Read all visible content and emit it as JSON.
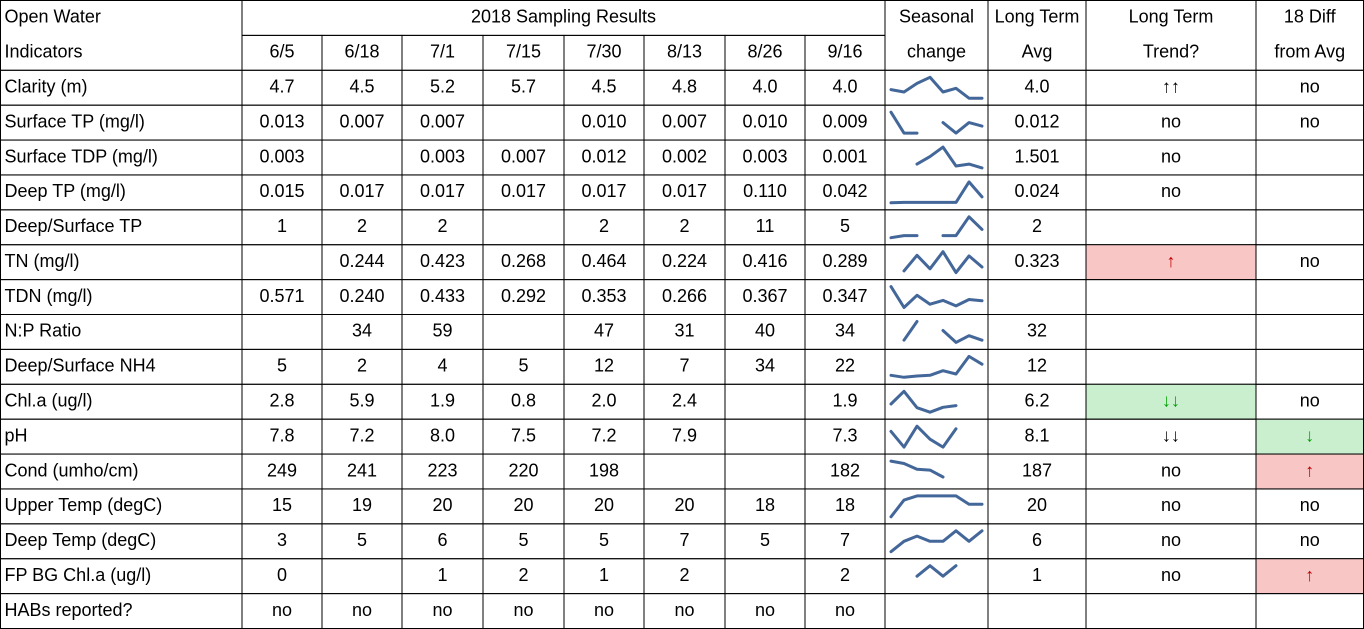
{
  "header": {
    "corner": [
      "Open Water",
      "Indicators"
    ],
    "group": "2018 Sampling Results",
    "dates": [
      "6/5",
      "6/18",
      "7/1",
      "7/15",
      "7/30",
      "8/13",
      "8/26",
      "9/16"
    ],
    "seasonal": [
      "Seasonal",
      "change"
    ],
    "avg": [
      "Long Term",
      "Avg"
    ],
    "trend": [
      "Long Term",
      "Trend?"
    ],
    "diff": [
      "18 Diff",
      "from Avg"
    ]
  },
  "rows": [
    {
      "label": "Clarity (m)",
      "values": [
        "4.7",
        "4.5",
        "5.2",
        "5.7",
        "4.5",
        "4.8",
        "4.0",
        "4.0"
      ],
      "avg": "4.0",
      "trend": "↑↑",
      "diff": "no"
    },
    {
      "label": "Surface TP (mg/l)",
      "values": [
        "0.013",
        "0.007",
        "0.007",
        null,
        "0.010",
        "0.007",
        "0.010",
        "0.009"
      ],
      "avg": "0.012",
      "trend": "no",
      "diff": "no"
    },
    {
      "label": "Surface TDP (mg/l)",
      "values": [
        "0.003",
        null,
        "0.003",
        "0.007",
        "0.012",
        "0.002",
        "0.003",
        "0.001"
      ],
      "avg": "1.501",
      "trend": "no",
      "diff": null
    },
    {
      "label": "Deep TP (mg/l)",
      "values": [
        "0.015",
        "0.017",
        "0.017",
        "0.017",
        "0.017",
        "0.017",
        "0.110",
        "0.042"
      ],
      "avg": "0.024",
      "trend": "no",
      "diff": null
    },
    {
      "label": "Deep/Surface TP",
      "values": [
        "1",
        "2",
        "2",
        null,
        "2",
        "2",
        "11",
        "5"
      ],
      "avg": "2",
      "trend": null,
      "diff": null
    },
    {
      "label": "TN (mg/l)",
      "values": [
        null,
        "0.244",
        "0.423",
        "0.268",
        "0.464",
        "0.224",
        "0.416",
        "0.289"
      ],
      "avg": "0.323",
      "trend": "↑",
      "diff": "no"
    },
    {
      "label": "TDN (mg/l)",
      "values": [
        "0.571",
        "0.240",
        "0.433",
        "0.292",
        "0.353",
        "0.266",
        "0.367",
        "0.347"
      ],
      "avg": null,
      "trend": null,
      "diff": null
    },
    {
      "label": "N:P Ratio",
      "values": [
        null,
        "34",
        "59",
        null,
        "47",
        "31",
        "40",
        "34"
      ],
      "avg": "32",
      "trend": null,
      "diff": null
    },
    {
      "label": "Deep/Surface NH4",
      "values": [
        "5",
        "2",
        "4",
        "5",
        "12",
        "7",
        "34",
        "22"
      ],
      "avg": "12",
      "trend": null,
      "diff": null
    },
    {
      "label": "Chl.a (ug/l)",
      "values": [
        "2.8",
        "5.9",
        "1.9",
        "0.8",
        "2.0",
        "2.4",
        null,
        "1.9"
      ],
      "avg": "6.2",
      "trend": "↓↓",
      "diff": "no"
    },
    {
      "label": "pH",
      "values": [
        "7.8",
        "7.2",
        "8.0",
        "7.5",
        "7.2",
        "7.9",
        null,
        "7.3"
      ],
      "avg": "8.1",
      "trend": "↓↓",
      "diff": "↓"
    },
    {
      "label": "Cond (umho/cm)",
      "values": [
        "249",
        "241",
        "223",
        "220",
        "198",
        null,
        null,
        "182"
      ],
      "avg": "187",
      "trend": "no",
      "diff": "↑"
    },
    {
      "label": "Upper Temp (degC)",
      "values": [
        "15",
        "19",
        "20",
        "20",
        "20",
        "20",
        "18",
        "18"
      ],
      "avg": "20",
      "trend": "no",
      "diff": "no"
    },
    {
      "label": "Deep Temp (degC)",
      "values": [
        "3",
        "5",
        "6",
        "5",
        "5",
        "7",
        "5",
        "7"
      ],
      "avg": "6",
      "trend": "no",
      "diff": "no"
    },
    {
      "label": "FP BG Chl.a (ug/l)",
      "values": [
        "0",
        null,
        "1",
        "2",
        "1",
        "2",
        null,
        "2"
      ],
      "avg": "1",
      "trend": "no",
      "diff": "↑"
    },
    {
      "label": "HABs reported?",
      "values": [
        "no",
        "no",
        "no",
        "no",
        "no",
        "no",
        "no",
        "no"
      ],
      "avg": null,
      "trend": null,
      "diff": null
    }
  ]
}
